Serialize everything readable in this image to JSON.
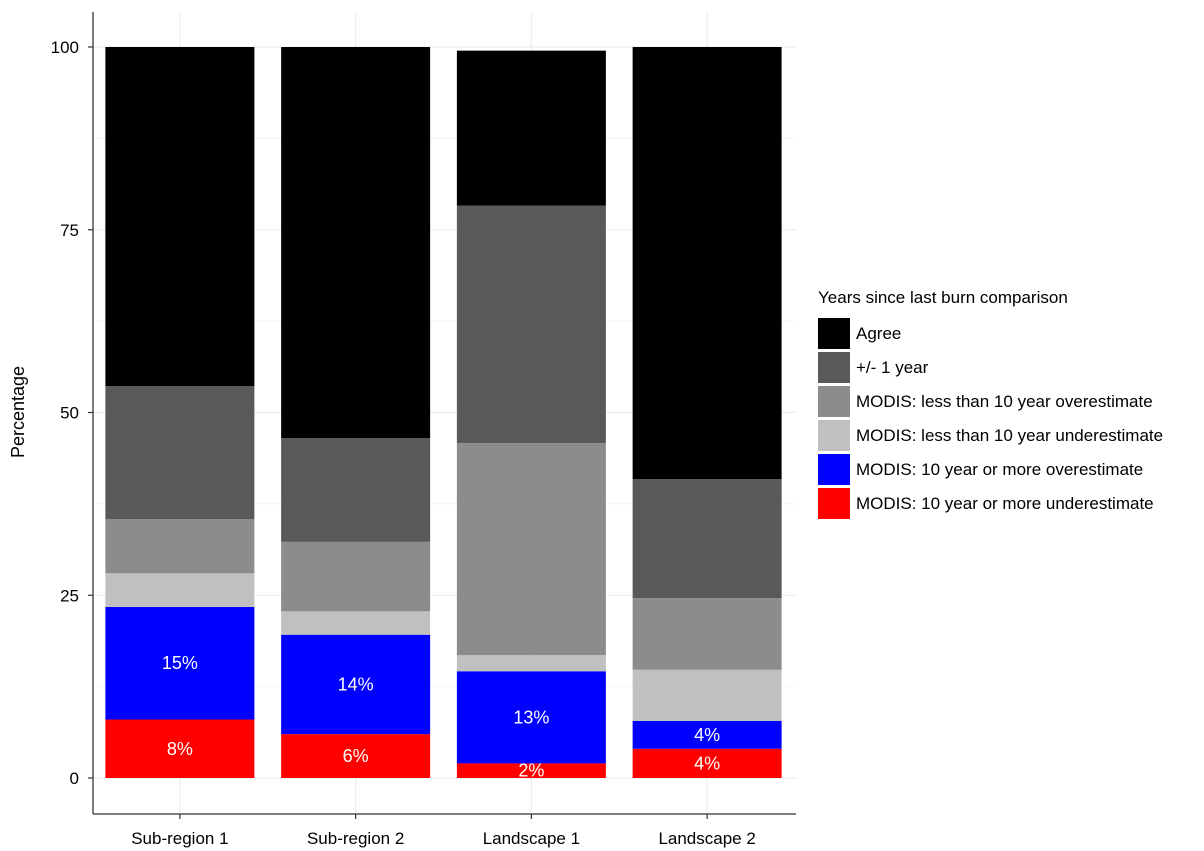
{
  "chart_data": {
    "type": "bar",
    "stacked": true,
    "ylabel": "Percentage",
    "xlabel": "",
    "ylim": [
      0,
      100
    ],
    "yticks": [
      0,
      25,
      50,
      75,
      100
    ],
    "grid": true,
    "legend_placement": "right",
    "legend_title": "Years since last burn comparison",
    "categories": [
      "Sub-region 1",
      "Sub-region 2",
      "Landscape 1",
      "Landscape 2"
    ],
    "series": [
      {
        "name": "MODIS: 10 year or more underestimate",
        "color": "#ff0000",
        "values": [
          8,
          6,
          2,
          4
        ],
        "labels": [
          "8%",
          "6%",
          "2%",
          "4%"
        ]
      },
      {
        "name": "MODIS: 10 year or more overestimate",
        "color": "#0000ff",
        "values": [
          15.4,
          13.6,
          12.6,
          3.8
        ],
        "labels": [
          "15%",
          "14%",
          "13%",
          "4%"
        ]
      },
      {
        "name": "MODIS: less than 10 year underestimate",
        "color": "#c0c0c0",
        "values": [
          4.6,
          3.2,
          2.2,
          7
        ],
        "labels": []
      },
      {
        "name": "MODIS: less than 10 year overestimate",
        "color": "#8c8c8c",
        "values": [
          7.4,
          9.5,
          29,
          9.8
        ],
        "labels": []
      },
      {
        "name": "+/- 1 year",
        "color": "#595959",
        "values": [
          18.2,
          14.2,
          32.5,
          16.3
        ],
        "labels": []
      },
      {
        "name": "Agree",
        "color": "#000000",
        "values": [
          46.4,
          53.5,
          21.2,
          59.1
        ],
        "labels": []
      }
    ],
    "legend_order": [
      "Agree",
      "+/- 1 year",
      "MODIS: less than 10 year overestimate",
      "MODIS: less than 10 year underestimate",
      "MODIS: 10 year or more overestimate",
      "MODIS: 10 year or more underestimate"
    ]
  }
}
